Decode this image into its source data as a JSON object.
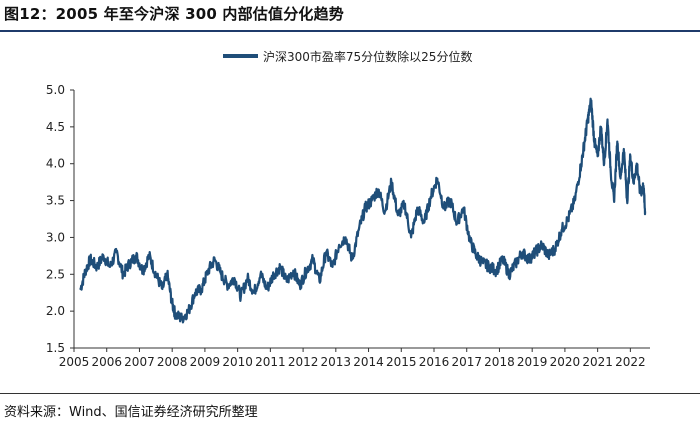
{
  "header": {
    "title": "图12：2005 年至今沪深 300 内部估值分化趋势"
  },
  "footer": {
    "source": "资料来源：Wind、国信证券经济研究所整理"
  },
  "colors": {
    "series": "#1f4e79",
    "rule": "#1f3b6b",
    "axis": "#333333"
  },
  "chart_data": {
    "type": "line",
    "title": "",
    "xlabel": "",
    "ylabel": "",
    "xlim": [
      2005,
      2022.6
    ],
    "ylim": [
      1.5,
      5.0
    ],
    "grid": false,
    "legend_position": "top-center",
    "x_ticks": [
      "2005",
      "2006",
      "2007",
      "2008",
      "2009",
      "2010",
      "2011",
      "2012",
      "2013",
      "2014",
      "2015",
      "2016",
      "2017",
      "2018",
      "2019",
      "2020",
      "2021",
      "2022"
    ],
    "y_ticks": [
      "1.5",
      "2.0",
      "2.5",
      "3.0",
      "3.5",
      "4.0",
      "4.5",
      "5.0"
    ],
    "series": [
      {
        "name": "沪深300市盈率75分位数除以25分位数",
        "x": [
          2005.2,
          2005.35,
          2005.5,
          2005.7,
          2005.9,
          2006.1,
          2006.3,
          2006.5,
          2006.7,
          2006.9,
          2007.1,
          2007.3,
          2007.5,
          2007.7,
          2007.85,
          2008.0,
          2008.1,
          2008.3,
          2008.5,
          2008.7,
          2008.9,
          2009.1,
          2009.3,
          2009.5,
          2009.7,
          2009.9,
          2010.1,
          2010.3,
          2010.5,
          2010.7,
          2010.9,
          2011.1,
          2011.3,
          2011.5,
          2011.7,
          2011.9,
          2012.1,
          2012.3,
          2012.5,
          2012.7,
          2012.9,
          2013.1,
          2013.3,
          2013.5,
          2013.7,
          2013.9,
          2014.1,
          2014.3,
          2014.5,
          2014.7,
          2014.9,
          2015.1,
          2015.3,
          2015.5,
          2015.7,
          2015.9,
          2016.1,
          2016.3,
          2016.5,
          2016.7,
          2016.9,
          2017.1,
          2017.3,
          2017.5,
          2017.7,
          2017.9,
          2018.1,
          2018.3,
          2018.5,
          2018.7,
          2018.9,
          2019.1,
          2019.3,
          2019.5,
          2019.7,
          2019.9,
          2020.1,
          2020.3,
          2020.5,
          2020.6,
          2020.7,
          2020.8,
          2020.9,
          2021.0,
          2021.1,
          2021.2,
          2021.3,
          2021.4,
          2021.5,
          2021.6,
          2021.7,
          2021.8,
          2021.9,
          2022.0,
          2022.1,
          2022.2,
          2022.3,
          2022.4,
          2022.45
        ],
        "y": [
          2.3,
          2.55,
          2.7,
          2.6,
          2.75,
          2.6,
          2.8,
          2.5,
          2.65,
          2.75,
          2.55,
          2.75,
          2.5,
          2.3,
          2.5,
          2.1,
          1.95,
          1.9,
          2.0,
          2.25,
          2.3,
          2.55,
          2.7,
          2.5,
          2.35,
          2.45,
          2.2,
          2.45,
          2.25,
          2.5,
          2.3,
          2.5,
          2.6,
          2.4,
          2.55,
          2.35,
          2.55,
          2.7,
          2.4,
          2.8,
          2.6,
          2.9,
          3.0,
          2.7,
          3.1,
          3.4,
          3.5,
          3.65,
          3.35,
          3.75,
          3.3,
          3.45,
          3.0,
          3.4,
          3.2,
          3.55,
          3.8,
          3.4,
          3.5,
          3.2,
          3.4,
          2.95,
          2.75,
          2.65,
          2.6,
          2.55,
          2.7,
          2.5,
          2.65,
          2.8,
          2.7,
          2.8,
          2.9,
          2.75,
          2.85,
          3.1,
          3.25,
          3.5,
          4.0,
          4.3,
          4.6,
          4.85,
          4.3,
          4.1,
          4.5,
          4.0,
          4.6,
          3.9,
          3.5,
          4.3,
          3.8,
          4.2,
          3.5,
          4.1,
          3.75,
          4.0,
          3.6,
          3.7,
          3.35
        ]
      }
    ]
  }
}
